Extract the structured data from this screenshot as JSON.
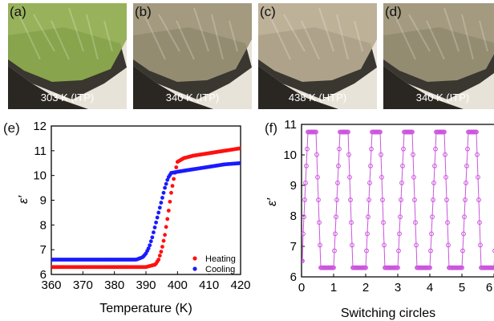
{
  "micrographs": [
    {
      "letter": "(a)",
      "caption": "303 K (ITP)",
      "tint": "#8fae4f"
    },
    {
      "letter": "(b)",
      "caption": "340 K (ITP)",
      "tint": "#9c9477"
    },
    {
      "letter": "(c)",
      "caption": "438 K (HTP)",
      "tint": "#b9ad92"
    },
    {
      "letter": "(d)",
      "caption": "340 K (ITP)",
      "tint": "#9c9477"
    }
  ],
  "chart_data": [
    {
      "panel": "(e)",
      "type": "scatter",
      "xlabel": "Temperature (K)",
      "ylabel": "ε′",
      "xlim": [
        360,
        420
      ],
      "ylim": [
        6,
        12
      ],
      "xticks": [
        360,
        370,
        380,
        390,
        400,
        410,
        420
      ],
      "yticks": [
        6,
        7,
        8,
        9,
        10,
        11,
        12
      ],
      "legend": "bottom-right",
      "series": [
        {
          "name": "Heating",
          "color": "#ff1010",
          "x": [
            360,
            370,
            380,
            390,
            393,
            394,
            395,
            396,
            397,
            398,
            399,
            400,
            402,
            405,
            410,
            415,
            420
          ],
          "y": [
            6.3,
            6.3,
            6.3,
            6.3,
            6.4,
            6.6,
            7.0,
            7.6,
            8.4,
            9.3,
            10.0,
            10.55,
            10.7,
            10.8,
            10.9,
            11.0,
            11.1
          ]
        },
        {
          "name": "Cooling",
          "color": "#1a1aff",
          "x": [
            360,
            370,
            380,
            387,
            389,
            390,
            391,
            392,
            393,
            394,
            395,
            396,
            397,
            398,
            400,
            405,
            410,
            415,
            420
          ],
          "y": [
            6.6,
            6.6,
            6.6,
            6.6,
            6.7,
            6.85,
            7.1,
            7.5,
            8.0,
            8.5,
            9.0,
            9.5,
            9.9,
            10.1,
            10.15,
            10.25,
            10.35,
            10.45,
            10.5
          ]
        }
      ]
    },
    {
      "panel": "(f)",
      "type": "line",
      "xlabel": "Switching circles",
      "ylabel": "ε′",
      "xlim": [
        0,
        6
      ],
      "ylim": [
        6,
        11
      ],
      "xticks": [
        0,
        1,
        2,
        3,
        4,
        5,
        6
      ],
      "yticks": [
        6,
        7,
        8,
        9,
        10,
        11
      ],
      "color": "#cc55dd",
      "cycles": 6,
      "high": 10.75,
      "low": 6.3
    }
  ]
}
